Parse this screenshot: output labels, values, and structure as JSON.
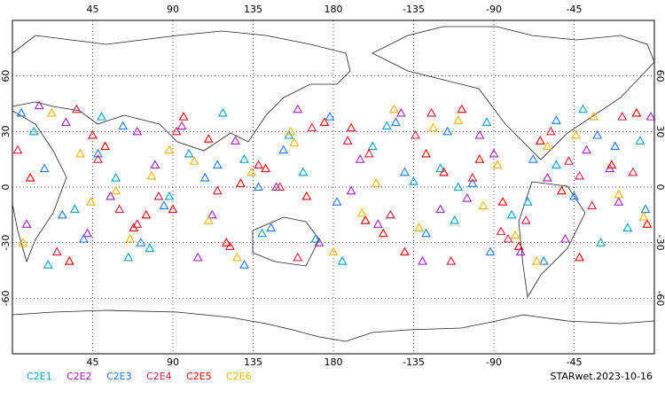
{
  "chart_data": {
    "type": "scatter",
    "footer": "STARwet.2023-10-16",
    "xlim": [
      0,
      360
    ],
    "ylim": [
      -90,
      90
    ],
    "xticks": [
      45,
      90,
      135,
      180,
      {
        "value": 225,
        "label": "-135"
      },
      {
        "value": 270,
        "label": "-90"
      },
      {
        "value": 315,
        "label": "-45"
      }
    ],
    "yticks": [
      60,
      30,
      0,
      -30,
      -60
    ],
    "grid": true,
    "series": [
      {
        "name": "C2E1",
        "color": "#00a0c8",
        "x": [
          12,
          35,
          58,
          77,
          99,
          118,
          140,
          163,
          185,
          202,
          225,
          248,
          266,
          289,
          305,
          330,
          352,
          20,
          50,
          88,
          130,
          170,
          210,
          250,
          280,
          320,
          345,
          65,
          155,
          240
        ],
        "values": [
          30,
          -12,
          5,
          -33,
          18,
          40,
          -25,
          8,
          -40,
          22,
          3,
          -18,
          35,
          -8,
          12,
          -30,
          25,
          -42,
          38,
          -5,
          15,
          -28,
          33,
          0,
          -15,
          42,
          -22,
          -38,
          28,
          10
        ]
      },
      {
        "name": "C2E2",
        "color": "#a020c0",
        "x": [
          8,
          30,
          55,
          80,
          104,
          125,
          148,
          172,
          195,
          218,
          240,
          262,
          285,
          300,
          322,
          340,
          358,
          42,
          70,
          112,
          160,
          190,
          230,
          270,
          310,
          335,
          95,
          205,
          255,
          15
        ],
        "values": [
          -20,
          35,
          -5,
          12,
          -38,
          25,
          0,
          -30,
          15,
          40,
          -12,
          28,
          -35,
          5,
          20,
          -8,
          38,
          -25,
          30,
          -15,
          42,
          -2,
          -40,
          18,
          -28,
          10,
          33,
          -20,
          -6,
          44
        ]
      },
      {
        "name": "C2E3",
        "color": "#1e78ff",
        "x": [
          18,
          40,
          62,
          85,
          108,
          130,
          152,
          178,
          198,
          220,
          244,
          268,
          292,
          315,
          338,
          5,
          28,
          72,
          115,
          145,
          182,
          215,
          258,
          298,
          328,
          355,
          48,
          138,
          232,
          305
        ],
        "values": [
          10,
          -28,
          33,
          -10,
          5,
          -42,
          20,
          38,
          -18,
          8,
          30,
          -35,
          15,
          -5,
          22,
          40,
          -15,
          -30,
          12,
          -22,
          -8,
          35,
          2,
          -40,
          28,
          -12,
          18,
          0,
          -25,
          36
        ]
      },
      {
        "name": "C2E4",
        "color": "#d21e3c",
        "x": [
          25,
          48,
          70,
          92,
          115,
          138,
          160,
          188,
          212,
          235,
          258,
          278,
          302,
          325,
          348,
          3,
          36,
          82,
          122,
          168,
          200,
          246,
          288,
          318,
          342,
          60,
          150,
          226,
          274,
          312
        ],
        "values": [
          -35,
          15,
          -20,
          30,
          -2,
          12,
          -38,
          25,
          -15,
          40,
          5,
          -28,
          30,
          -10,
          8,
          20,
          42,
          -5,
          -32,
          32,
          18,
          -40,
          -18,
          6,
          38,
          -12,
          0,
          28,
          -24,
          14
        ]
      },
      {
        "name": "C2E5",
        "color": "#e60000",
        "x": [
          10,
          32,
          52,
          75,
          96,
          120,
          142,
          165,
          190,
          208,
          232,
          252,
          275,
          296,
          318,
          336,
          356,
          45,
          90,
          128,
          175,
          220,
          262,
          308,
          350,
          68,
          110,
          198,
          242,
          284
        ],
        "values": [
          5,
          -40,
          22,
          -15,
          38,
          -30,
          10,
          -5,
          32,
          -25,
          18,
          42,
          -8,
          25,
          -38,
          12,
          -20,
          28,
          -12,
          2,
          35,
          -35,
          15,
          -2,
          40,
          -22,
          26,
          -18,
          8,
          -32
        ]
      },
      {
        "name": "C2E6",
        "color": "#f0b400",
        "x": [
          22,
          44,
          66,
          88,
          110,
          134,
          156,
          180,
          204,
          228,
          250,
          272,
          294,
          316,
          340,
          6,
          38,
          78,
          126,
          158,
          196,
          236,
          282,
          326,
          354,
          58,
          102,
          214,
          264,
          300
        ],
        "values": [
          40,
          -8,
          -28,
          20,
          -18,
          8,
          30,
          -35,
          2,
          -22,
          36,
          12,
          -40,
          28,
          -4,
          -30,
          18,
          6,
          -38,
          24,
          -14,
          32,
          -26,
          38,
          -16,
          -2,
          14,
          42,
          -10,
          22
        ]
      }
    ]
  }
}
